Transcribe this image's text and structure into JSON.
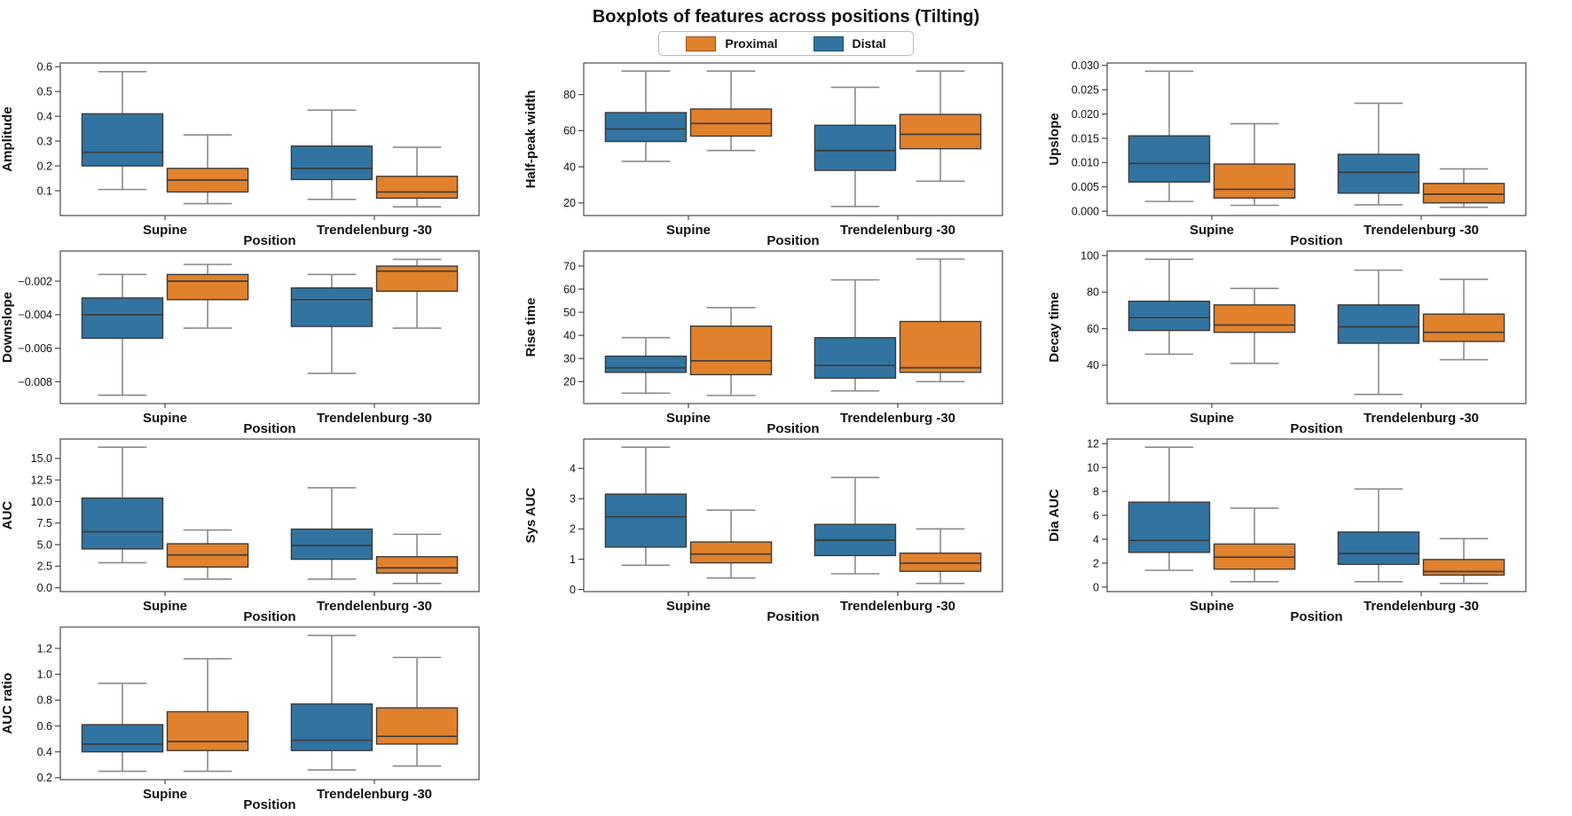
{
  "title": "Boxplots of features across positions (Tilting)",
  "legend": {
    "items": [
      {
        "label": "Proximal",
        "color": "#E1812C"
      },
      {
        "label": "Distal",
        "color": "#3274A1"
      }
    ]
  },
  "axis": {
    "xlabel": "Position",
    "categories": [
      "Supine",
      "Trendelenburg -30"
    ]
  },
  "style_colors": {
    "box_edge": "#3b3b3b",
    "median": "#3b3b3b",
    "whisker": "#8a8a8a",
    "spine": "#4a4a4a"
  },
  "chart_data": [
    {
      "type": "box",
      "ylabel": "Amplitude",
      "ylim": [
        0.0,
        0.615
      ],
      "yticks": [
        0.1,
        0.2,
        0.3,
        0.4,
        0.5,
        0.6
      ],
      "yticklabels": [
        "0.1",
        "0.2",
        "0.3",
        "0.4",
        "0.5",
        "0.6"
      ],
      "series": [
        {
          "name": "Distal",
          "color": "#3274A1",
          "boxes": [
            {
              "whislo": 0.105,
              "q1": 0.2,
              "med": 0.255,
              "q3": 0.41,
              "whishi": 0.58
            },
            {
              "whislo": 0.065,
              "q1": 0.145,
              "med": 0.19,
              "q3": 0.28,
              "whishi": 0.425
            }
          ]
        },
        {
          "name": "Proximal",
          "color": "#E1812C",
          "boxes": [
            {
              "whislo": 0.048,
              "q1": 0.095,
              "med": 0.143,
              "q3": 0.19,
              "whishi": 0.325
            },
            {
              "whislo": 0.035,
              "q1": 0.07,
              "med": 0.095,
              "q3": 0.158,
              "whishi": 0.275
            }
          ]
        }
      ]
    },
    {
      "type": "box",
      "ylabel": "Half-peak width",
      "ylim": [
        13,
        97.5
      ],
      "yticks": [
        20,
        40,
        60,
        80
      ],
      "yticklabels": [
        "20",
        "40",
        "60",
        "80"
      ],
      "series": [
        {
          "name": "Distal",
          "color": "#3274A1",
          "boxes": [
            {
              "whislo": 43,
              "q1": 54,
              "med": 61,
              "q3": 70,
              "whishi": 93
            },
            {
              "whislo": 18,
              "q1": 38,
              "med": 49,
              "q3": 63,
              "whishi": 84
            }
          ]
        },
        {
          "name": "Proximal",
          "color": "#E1812C",
          "boxes": [
            {
              "whislo": 49,
              "q1": 57,
              "med": 64,
              "q3": 72,
              "whishi": 93
            },
            {
              "whislo": 32,
              "q1": 50,
              "med": 58,
              "q3": 69,
              "whishi": 93
            }
          ]
        }
      ]
    },
    {
      "type": "box",
      "ylabel": "Upslope",
      "ylim": [
        -0.0009,
        0.0305
      ],
      "yticks": [
        0.0,
        0.005,
        0.01,
        0.015,
        0.02,
        0.025,
        0.03
      ],
      "yticklabels": [
        "0.000",
        "0.005",
        "0.010",
        "0.015",
        "0.020",
        "0.025",
        "0.030"
      ],
      "series": [
        {
          "name": "Distal",
          "color": "#3274A1",
          "boxes": [
            {
              "whislo": 0.002,
              "q1": 0.006,
              "med": 0.0098,
              "q3": 0.0155,
              "whishi": 0.0288
            },
            {
              "whislo": 0.0013,
              "q1": 0.0037,
              "med": 0.008,
              "q3": 0.0117,
              "whishi": 0.0222
            }
          ]
        },
        {
          "name": "Proximal",
          "color": "#E1812C",
          "boxes": [
            {
              "whislo": 0.0012,
              "q1": 0.0027,
              "med": 0.0045,
              "q3": 0.0097,
              "whishi": 0.018
            },
            {
              "whislo": 0.0008,
              "q1": 0.0017,
              "med": 0.0035,
              "q3": 0.0057,
              "whishi": 0.0087
            }
          ]
        }
      ]
    },
    {
      "type": "box",
      "ylabel": "Downslope",
      "ylim": [
        -0.0093,
        -0.0002
      ],
      "yticks": [
        -0.008,
        -0.006,
        -0.004,
        -0.002
      ],
      "yticklabels": [
        "−0.008",
        "−0.006",
        "−0.004",
        "−0.002"
      ],
      "series": [
        {
          "name": "Distal",
          "color": "#3274A1",
          "boxes": [
            {
              "whislo": -0.0088,
              "q1": -0.0054,
              "med": -0.004,
              "q3": -0.003,
              "whishi": -0.0016
            },
            {
              "whislo": -0.0075,
              "q1": -0.0047,
              "med": -0.0031,
              "q3": -0.0024,
              "whishi": -0.0016
            }
          ]
        },
        {
          "name": "Proximal",
          "color": "#E1812C",
          "boxes": [
            {
              "whislo": -0.0048,
              "q1": -0.0031,
              "med": -0.002,
              "q3": -0.0016,
              "whishi": -0.001
            },
            {
              "whislo": -0.0048,
              "q1": -0.0026,
              "med": -0.0014,
              "q3": -0.0011,
              "whishi": -0.0007
            }
          ]
        }
      ]
    },
    {
      "type": "box",
      "ylabel": "Rise time",
      "ylim": [
        10.5,
        76.5
      ],
      "yticks": [
        20,
        30,
        40,
        50,
        60,
        70
      ],
      "yticklabels": [
        "20",
        "30",
        "40",
        "50",
        "60",
        "70"
      ],
      "series": [
        {
          "name": "Distal",
          "color": "#3274A1",
          "boxes": [
            {
              "whislo": 15,
              "q1": 24,
              "med": 26,
              "q3": 31,
              "whishi": 39
            },
            {
              "whislo": 16,
              "q1": 21.5,
              "med": 27,
              "q3": 39,
              "whishi": 64
            }
          ]
        },
        {
          "name": "Proximal",
          "color": "#E1812C",
          "boxes": [
            {
              "whislo": 14,
              "q1": 23,
              "med": 29,
              "q3": 44,
              "whishi": 52
            },
            {
              "whislo": 20,
              "q1": 24,
              "med": 26,
              "q3": 46,
              "whishi": 73
            }
          ]
        }
      ]
    },
    {
      "type": "box",
      "ylabel": "Decay time",
      "ylim": [
        19,
        102.5
      ],
      "yticks": [
        40,
        60,
        80,
        100
      ],
      "yticklabels": [
        "40",
        "60",
        "80",
        "100"
      ],
      "series": [
        {
          "name": "Distal",
          "color": "#3274A1",
          "boxes": [
            {
              "whislo": 46,
              "q1": 59,
              "med": 66,
              "q3": 75,
              "whishi": 98
            },
            {
              "whislo": 24,
              "q1": 52,
              "med": 61,
              "q3": 73,
              "whishi": 92
            }
          ]
        },
        {
          "name": "Proximal",
          "color": "#E1812C",
          "boxes": [
            {
              "whislo": 41,
              "q1": 58,
              "med": 62,
              "q3": 73,
              "whishi": 82
            },
            {
              "whislo": 43,
              "q1": 53,
              "med": 58,
              "q3": 68,
              "whishi": 87
            }
          ]
        }
      ]
    },
    {
      "type": "box",
      "ylabel": "AUC",
      "ylim": [
        -0.45,
        17.25
      ],
      "yticks": [
        0.0,
        2.5,
        5.0,
        7.5,
        10.0,
        12.5,
        15.0
      ],
      "yticklabels": [
        "0.0",
        "2.5",
        "5.0",
        "7.5",
        "10.0",
        "12.5",
        "15.0"
      ],
      "series": [
        {
          "name": "Distal",
          "color": "#3274A1",
          "boxes": [
            {
              "whislo": 2.9,
              "q1": 4.5,
              "med": 6.5,
              "q3": 10.4,
              "whishi": 16.3
            },
            {
              "whislo": 1.0,
              "q1": 3.3,
              "med": 4.9,
              "q3": 6.8,
              "whishi": 11.6
            }
          ]
        },
        {
          "name": "Proximal",
          "color": "#E1812C",
          "boxes": [
            {
              "whislo": 1.0,
              "q1": 2.4,
              "med": 3.8,
              "q3": 5.1,
              "whishi": 6.7
            },
            {
              "whislo": 0.5,
              "q1": 1.7,
              "med": 2.3,
              "q3": 3.6,
              "whishi": 6.2
            }
          ]
        }
      ]
    },
    {
      "type": "box",
      "ylabel": "Sys AUC",
      "ylim": [
        -0.07,
        4.97
      ],
      "yticks": [
        0,
        1,
        2,
        3,
        4
      ],
      "yticklabels": [
        "0",
        "1",
        "2",
        "3",
        "4"
      ],
      "series": [
        {
          "name": "Distal",
          "color": "#3274A1",
          "boxes": [
            {
              "whislo": 0.8,
              "q1": 1.4,
              "med": 2.4,
              "q3": 3.15,
              "whishi": 4.7
            },
            {
              "whislo": 0.52,
              "q1": 1.12,
              "med": 1.63,
              "q3": 2.15,
              "whishi": 3.7
            }
          ]
        },
        {
          "name": "Proximal",
          "color": "#E1812C",
          "boxes": [
            {
              "whislo": 0.38,
              "q1": 0.88,
              "med": 1.17,
              "q3": 1.57,
              "whishi": 2.62
            },
            {
              "whislo": 0.2,
              "q1": 0.6,
              "med": 0.87,
              "q3": 1.2,
              "whishi": 2.0
            }
          ]
        }
      ]
    },
    {
      "type": "box",
      "ylabel": "Dia AUC",
      "ylim": [
        -0.38,
        12.38
      ],
      "yticks": [
        0,
        2,
        4,
        6,
        8,
        10,
        12
      ],
      "yticklabels": [
        "0",
        "2",
        "4",
        "6",
        "8",
        "10",
        "12"
      ],
      "series": [
        {
          "name": "Distal",
          "color": "#3274A1",
          "boxes": [
            {
              "whislo": 1.4,
              "q1": 2.9,
              "med": 3.9,
              "q3": 7.1,
              "whishi": 11.7
            },
            {
              "whislo": 0.45,
              "q1": 1.9,
              "med": 2.8,
              "q3": 4.6,
              "whishi": 8.2
            }
          ]
        },
        {
          "name": "Proximal",
          "color": "#E1812C",
          "boxes": [
            {
              "whislo": 0.45,
              "q1": 1.5,
              "med": 2.5,
              "q3": 3.6,
              "whishi": 6.6
            },
            {
              "whislo": 0.3,
              "q1": 1.0,
              "med": 1.3,
              "q3": 2.3,
              "whishi": 4.05
            }
          ]
        }
      ]
    },
    {
      "type": "box",
      "ylabel": "AUC ratio",
      "ylim": [
        0.185,
        1.365
      ],
      "yticks": [
        0.2,
        0.4,
        0.6,
        0.8,
        1.0,
        1.2
      ],
      "yticklabels": [
        "0.2",
        "0.4",
        "0.6",
        "0.8",
        "1.0",
        "1.2"
      ],
      "series": [
        {
          "name": "Distal",
          "color": "#3274A1",
          "boxes": [
            {
              "whislo": 0.25,
              "q1": 0.4,
              "med": 0.46,
              "q3": 0.61,
              "whishi": 0.93
            },
            {
              "whislo": 0.26,
              "q1": 0.41,
              "med": 0.49,
              "q3": 0.77,
              "whishi": 1.3
            }
          ]
        },
        {
          "name": "Proximal",
          "color": "#E1812C",
          "boxes": [
            {
              "whislo": 0.25,
              "q1": 0.41,
              "med": 0.48,
              "q3": 0.71,
              "whishi": 1.12
            },
            {
              "whislo": 0.29,
              "q1": 0.46,
              "med": 0.52,
              "q3": 0.74,
              "whishi": 1.13
            }
          ]
        }
      ]
    }
  ]
}
